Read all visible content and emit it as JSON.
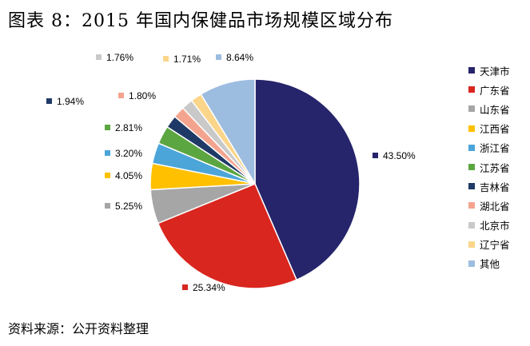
{
  "title": "图表 8：2015 年国内保健品市场规模区域分布",
  "source": "资料来源：公开资料整理",
  "chart_data": {
    "type": "pie",
    "legend_position": "right",
    "slices": [
      {
        "name": "天津市",
        "value": 43.5,
        "label": "43.50%",
        "color": "#26246b"
      },
      {
        "name": "广东省",
        "value": 25.34,
        "label": "25.34%",
        "color": "#d9261f"
      },
      {
        "name": "山东省",
        "value": 5.25,
        "label": "5.25%",
        "color": "#a6a6a6"
      },
      {
        "name": "江西省",
        "value": 4.05,
        "label": "4.05%",
        "color": "#ffc000"
      },
      {
        "name": "浙江省",
        "value": 3.2,
        "label": "3.20%",
        "color": "#4ba5d8"
      },
      {
        "name": "江苏省",
        "value": 2.81,
        "label": "2.81%",
        "color": "#5ca642"
      },
      {
        "name": "吉林省",
        "value": 1.94,
        "label": "1.94%",
        "color": "#1f3a66"
      },
      {
        "name": "湖北省",
        "value": 1.8,
        "label": "1.80%",
        "color": "#f4a48e"
      },
      {
        "name": "北京市",
        "value": 1.76,
        "label": "1.76%",
        "color": "#c9c9c9"
      },
      {
        "name": "辽宁省",
        "value": 1.71,
        "label": "1.71%",
        "color": "#fbd58a"
      },
      {
        "name": "其他",
        "value": 8.64,
        "label": "8.64%",
        "color": "#9dbde0"
      }
    ]
  }
}
